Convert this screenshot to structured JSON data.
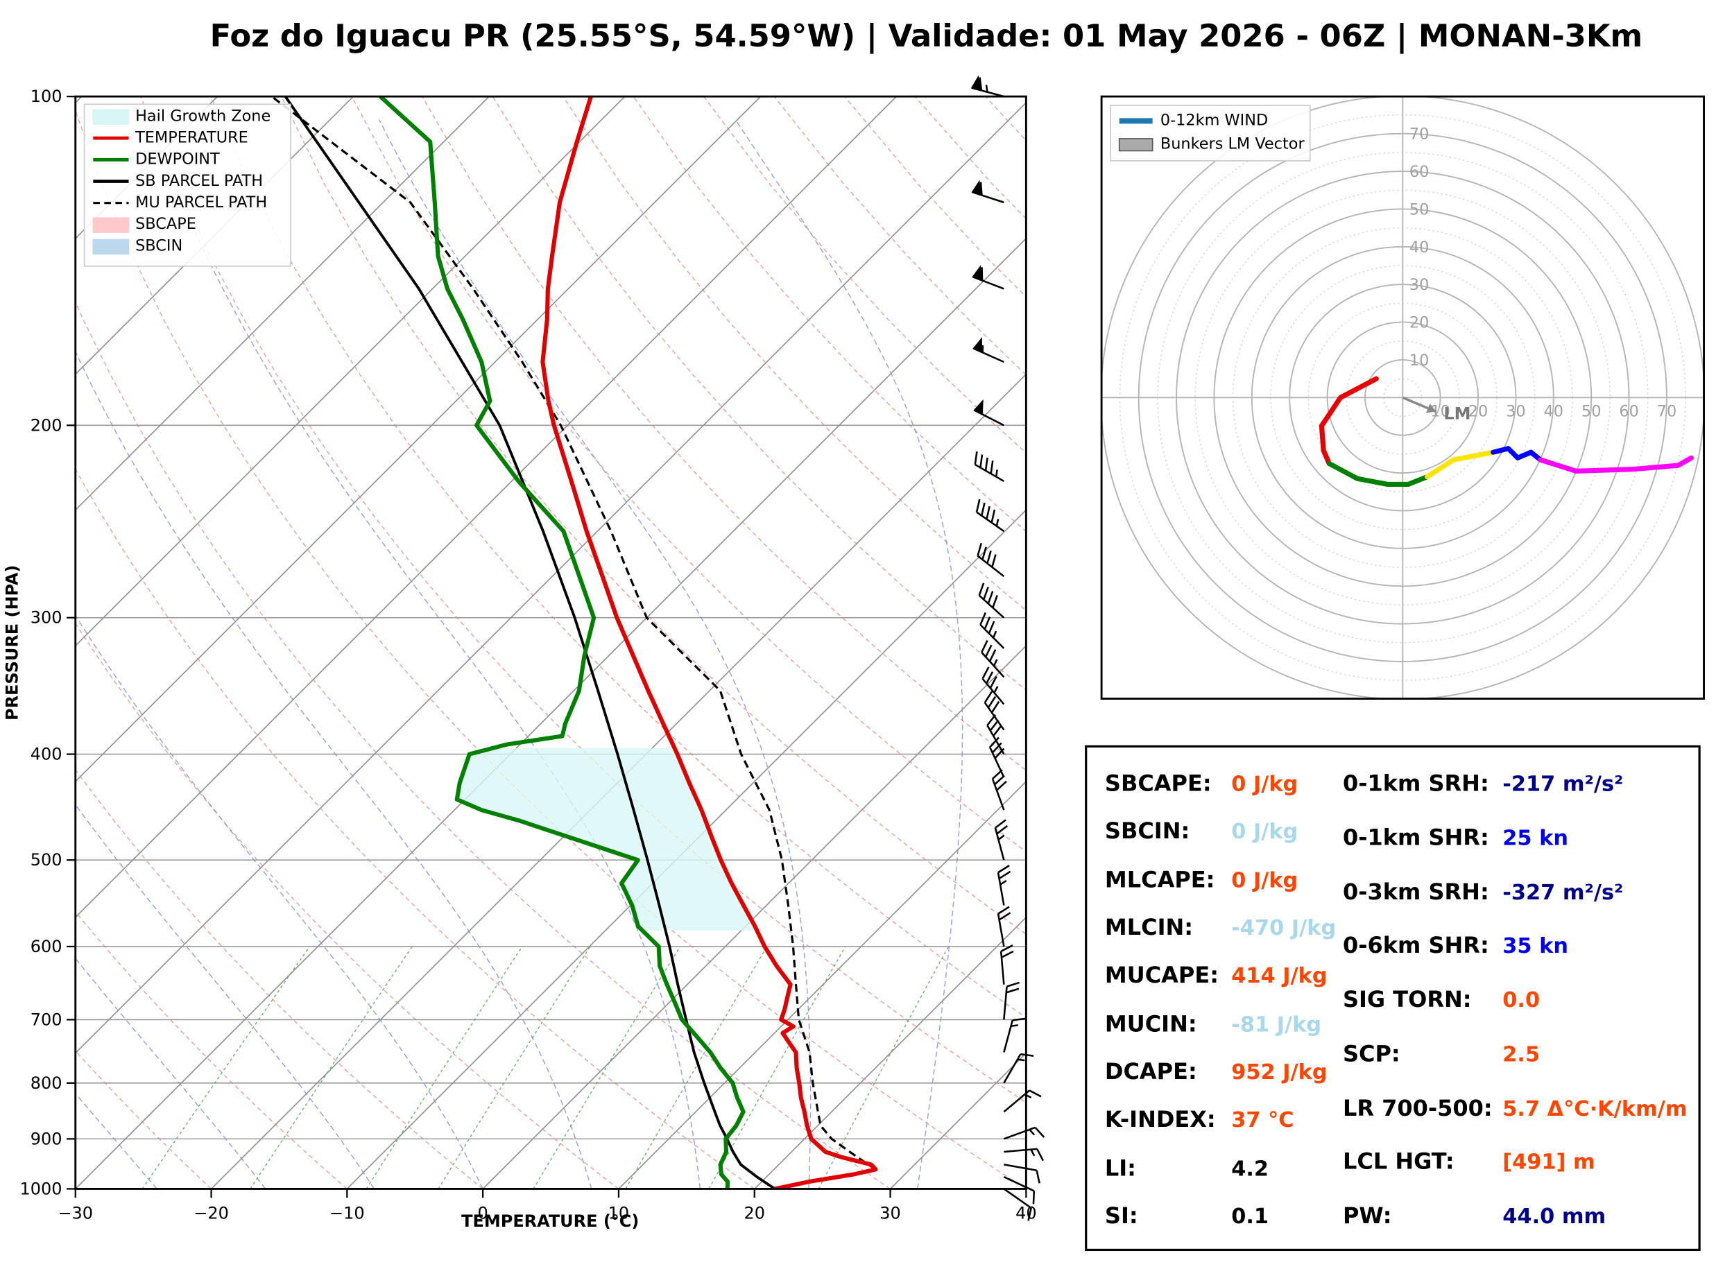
{
  "title": "Foz do Iguacu PR (25.55°S, 54.59°W) | Validade: 01 May 2026 - 06Z | MONAN-3Km",
  "skewt": {
    "xlabel": "TEMPERATURE (°C)",
    "ylabel": "PRESSURE (HPA)",
    "x_ticks": [
      -30,
      -20,
      -10,
      0,
      10,
      20,
      30,
      40
    ],
    "y_ticks": [
      100,
      200,
      300,
      400,
      500,
      600,
      700,
      800,
      900,
      1000
    ],
    "legend_items": [
      {
        "label": "Hail Growth Zone",
        "type": "patch",
        "color": "#d9f6f6"
      },
      {
        "label": "TEMPERATURE",
        "type": "line",
        "color": "#e00000"
      },
      {
        "label": "DEWPOINT",
        "type": "line",
        "color": "#008000"
      },
      {
        "label": "SB PARCEL PATH",
        "type": "line",
        "color": "#000000"
      },
      {
        "label": "MU PARCEL PATH",
        "type": "dashed",
        "color": "#000000"
      },
      {
        "label": "SBCAPE",
        "type": "patch",
        "color": "#ffc9cc"
      },
      {
        "label": "SBCIN",
        "type": "patch",
        "color": "#bcd8ee"
      }
    ]
  },
  "chart_data": {
    "type": "skewt-log-p sounding",
    "pressure_axis": "log",
    "pressure_range_hpa": [
      100,
      1000
    ],
    "temp_range_c": [
      -30,
      40
    ],
    "colors": {
      "temperature": "#e00000",
      "dewpoint": "#008000",
      "parcel": "#000000",
      "hail_zone": "#d9f6f6"
    },
    "temperature_C": [
      [
        1000,
        21.5
      ],
      [
        985,
        23.5
      ],
      [
        970,
        26.2
      ],
      [
        960,
        27.5
      ],
      [
        950,
        26.8
      ],
      [
        935,
        24.0
      ],
      [
        925,
        22.5
      ],
      [
        900,
        20.5
      ],
      [
        875,
        19.2
      ],
      [
        850,
        18.0
      ],
      [
        825,
        16.7
      ],
      [
        800,
        15.5
      ],
      [
        775,
        14.2
      ],
      [
        750,
        13.0
      ],
      [
        735,
        11.8
      ],
      [
        720,
        10.6
      ],
      [
        710,
        10.9
      ],
      [
        700,
        9.5
      ],
      [
        685,
        9.0
      ],
      [
        665,
        8.2
      ],
      [
        650,
        7.6
      ],
      [
        625,
        5.2
      ],
      [
        600,
        2.9
      ],
      [
        575,
        0.7
      ],
      [
        550,
        -1.7
      ],
      [
        525,
        -4.2
      ],
      [
        500,
        -6.7
      ],
      [
        475,
        -9.2
      ],
      [
        450,
        -11.8
      ],
      [
        425,
        -14.7
      ],
      [
        400,
        -17.7
      ],
      [
        375,
        -21.0
      ],
      [
        350,
        -24.5
      ],
      [
        325,
        -28.2
      ],
      [
        300,
        -32.2
      ],
      [
        275,
        -36.3
      ],
      [
        250,
        -40.8
      ],
      [
        225,
        -45.6
      ],
      [
        200,
        -51.0
      ],
      [
        190,
        -53.2
      ],
      [
        175,
        -56.5
      ],
      [
        160,
        -59.3
      ],
      [
        150,
        -61.5
      ],
      [
        140,
        -63.6
      ],
      [
        125,
        -67.0
      ],
      [
        110,
        -70.2
      ],
      [
        100,
        -72.5
      ]
    ],
    "dewpoint_C": [
      [
        1000,
        18.0
      ],
      [
        985,
        17.5
      ],
      [
        970,
        16.5
      ],
      [
        950,
        15.7
      ],
      [
        925,
        15.2
      ],
      [
        900,
        14.2
      ],
      [
        875,
        14.0
      ],
      [
        850,
        13.5
      ],
      [
        825,
        12.0
      ],
      [
        800,
        10.6
      ],
      [
        775,
        8.6
      ],
      [
        750,
        6.7
      ],
      [
        725,
        4.5
      ],
      [
        700,
        2.2
      ],
      [
        675,
        0.4
      ],
      [
        650,
        -1.5
      ],
      [
        625,
        -3.4
      ],
      [
        600,
        -4.9
      ],
      [
        575,
        -7.9
      ],
      [
        550,
        -9.9
      ],
      [
        525,
        -12.3
      ],
      [
        500,
        -12.8
      ],
      [
        475,
        -20.0
      ],
      [
        460,
        -24.5
      ],
      [
        450,
        -28.0
      ],
      [
        440,
        -30.6
      ],
      [
        425,
        -31.6
      ],
      [
        400,
        -33.0
      ],
      [
        392,
        -31.0
      ],
      [
        385,
        -27.5
      ],
      [
        375,
        -28.2
      ],
      [
        350,
        -29.6
      ],
      [
        325,
        -31.8
      ],
      [
        300,
        -33.9
      ],
      [
        275,
        -38.0
      ],
      [
        250,
        -42.5
      ],
      [
        225,
        -49.5
      ],
      [
        200,
        -56.7
      ],
      [
        190,
        -57.5
      ],
      [
        175,
        -61.0
      ],
      [
        160,
        -65.5
      ],
      [
        150,
        -68.9
      ],
      [
        140,
        -72.0
      ],
      [
        125,
        -76.2
      ],
      [
        110,
        -81.0
      ],
      [
        100,
        -88.0
      ]
    ],
    "sb_parcel_C": [
      [
        1000,
        21.5
      ],
      [
        975,
        19.3
      ],
      [
        950,
        17.2
      ],
      [
        925,
        15.7
      ],
      [
        900,
        14.3
      ],
      [
        875,
        12.8
      ],
      [
        850,
        11.4
      ],
      [
        800,
        8.5
      ],
      [
        750,
        5.5
      ],
      [
        700,
        2.5
      ],
      [
        650,
        -0.7
      ],
      [
        600,
        -4.1
      ],
      [
        550,
        -7.9
      ],
      [
        500,
        -12.1
      ],
      [
        450,
        -16.8
      ],
      [
        400,
        -22.1
      ],
      [
        350,
        -28.2
      ],
      [
        300,
        -35.3
      ],
      [
        250,
        -44.0
      ],
      [
        200,
        -55.0
      ],
      [
        150,
        -71.0
      ],
      [
        100,
        -95.0
      ]
    ],
    "mu_parcel_C": [
      [
        960,
        27.5
      ],
      [
        935,
        25.2
      ],
      [
        925,
        24.3
      ],
      [
        900,
        22.0
      ],
      [
        875,
        20.2
      ],
      [
        850,
        19.0
      ],
      [
        800,
        16.5
      ],
      [
        750,
        14.0
      ],
      [
        700,
        10.8
      ],
      [
        650,
        8.0
      ],
      [
        600,
        5.0
      ],
      [
        550,
        1.6
      ],
      [
        500,
        -2.2
      ],
      [
        450,
        -6.8
      ],
      [
        400,
        -13.0
      ],
      [
        350,
        -19.2
      ],
      [
        300,
        -30.0
      ],
      [
        250,
        -39.0
      ],
      [
        200,
        -50.5
      ],
      [
        175,
        -58.0
      ],
      [
        150,
        -67.0
      ],
      [
        125,
        -78.0
      ],
      [
        100,
        -96.0
      ]
    ],
    "hail_growth_zone_hpa": [
      580,
      395
    ],
    "wind_barbs": [
      [
        1000,
        9,
        125
      ],
      [
        975,
        10,
        115
      ],
      [
        950,
        12,
        100
      ],
      [
        925,
        13,
        85
      ],
      [
        900,
        13,
        70
      ],
      [
        850,
        14,
        50
      ],
      [
        800,
        15,
        30
      ],
      [
        750,
        16,
        15
      ],
      [
        700,
        18,
        5
      ],
      [
        650,
        20,
        355
      ],
      [
        600,
        22,
        350
      ],
      [
        550,
        24,
        350
      ],
      [
        500,
        26,
        345
      ],
      [
        450,
        28,
        340
      ],
      [
        420,
        30,
        335
      ],
      [
        400,
        31,
        330
      ],
      [
        380,
        32,
        325
      ],
      [
        360,
        33,
        320
      ],
      [
        340,
        34,
        318
      ],
      [
        320,
        36,
        315
      ],
      [
        300,
        38,
        312
      ],
      [
        275,
        40,
        308
      ],
      [
        250,
        43,
        305
      ],
      [
        225,
        47,
        300
      ],
      [
        200,
        52,
        297
      ],
      [
        175,
        55,
        294
      ],
      [
        150,
        58,
        291
      ],
      [
        125,
        61,
        288
      ],
      [
        100,
        64,
        285
      ]
    ],
    "hodograph": {
      "ring_interval_kn": 10,
      "ring_labels": [
        10,
        20,
        30,
        40,
        50,
        60,
        70
      ],
      "lm_label": "LM",
      "lm_vector": [
        8.8,
        -3.7
      ],
      "segments": [
        {
          "color": "#e60000",
          "points": [
            [
              -7,
              5
            ],
            [
              -16.5,
              0
            ],
            [
              -21.5,
              -7.5
            ],
            [
              -21,
              -14
            ],
            [
              -19.5,
              -17.5
            ]
          ]
        },
        {
          "color": "#008000",
          "points": [
            [
              -19.5,
              -17.5
            ],
            [
              -12,
              -21.5
            ],
            [
              -4,
              -23
            ],
            [
              1.5,
              -23
            ],
            [
              6.5,
              -21
            ]
          ]
        },
        {
          "color": "#ffe400",
          "points": [
            [
              6.5,
              -21
            ],
            [
              13.5,
              -16.5
            ],
            [
              24,
              -14.5
            ]
          ]
        },
        {
          "color": "#0000ff",
          "points": [
            [
              24,
              -14.5
            ],
            [
              28,
              -13.5
            ],
            [
              30.5,
              -16
            ],
            [
              34,
              -14.5
            ],
            [
              36.5,
              -16.5
            ]
          ]
        },
        {
          "color": "#ff00ff",
          "points": [
            [
              36.5,
              -16.5
            ],
            [
              46,
              -19.5
            ],
            [
              61,
              -19
            ],
            [
              73,
              -18
            ],
            [
              76.5,
              -16
            ]
          ]
        }
      ],
      "legend_items": [
        {
          "label": "0-12km WIND",
          "type": "line",
          "color": "#1f77b4"
        },
        {
          "label": "Bunkers LM Vector",
          "type": "patch",
          "color": "#aaaaaa"
        }
      ]
    }
  },
  "stats": {
    "left": [
      {
        "label": "SBCAPE:",
        "value": "0 J/kg",
        "color": "#ff4500"
      },
      {
        "label": "SBCIN:",
        "value": "0 J/kg",
        "color": "#a8d8ea"
      },
      {
        "label": "MLCAPE:",
        "value": "0 J/kg",
        "color": "#ff4500"
      },
      {
        "label": "MLCIN:",
        "value": "-470 J/kg",
        "color": "#a8d8ea"
      },
      {
        "label": "MUCAPE:",
        "value": "414 J/kg",
        "color": "#ff4500"
      },
      {
        "label": "MUCIN:",
        "value": "-81 J/kg",
        "color": "#a8d8ea"
      },
      {
        "label": "DCAPE:",
        "value": "952 J/kg",
        "color": "#ff4500"
      },
      {
        "label": "K-INDEX:",
        "value": "37 °C",
        "color": "#ff4500"
      },
      {
        "label": "LI:",
        "value": "4.2",
        "color": "#000000"
      },
      {
        "label": "SI:",
        "value": "0.1",
        "color": "#000000"
      }
    ],
    "right": [
      {
        "label": "0-1km SRH:",
        "value": "-217 m²/s²",
        "color": "#00008b"
      },
      {
        "label": "0-1km SHR:",
        "value": "25 kn",
        "color": "#0000ee"
      },
      {
        "label": "0-3km SRH:",
        "value": "-327 m²/s²",
        "color": "#00008b"
      },
      {
        "label": "0-6km SHR:",
        "value": "35 kn",
        "color": "#0000ee"
      },
      {
        "label": "SIG TORN:",
        "value": "0.0",
        "color": "#ff4500"
      },
      {
        "label": "SCP:",
        "value": "2.5",
        "color": "#ff4500"
      },
      {
        "label": "LR 700-500:",
        "value": "5.7 Δ°C·K/km/m",
        "color": "#ff4500"
      },
      {
        "label": "LCL HGT:",
        "value": "[491] m",
        "color": "#ff4500"
      },
      {
        "label": "PW:",
        "value": "44.0 mm",
        "color": "#00008b"
      }
    ]
  }
}
